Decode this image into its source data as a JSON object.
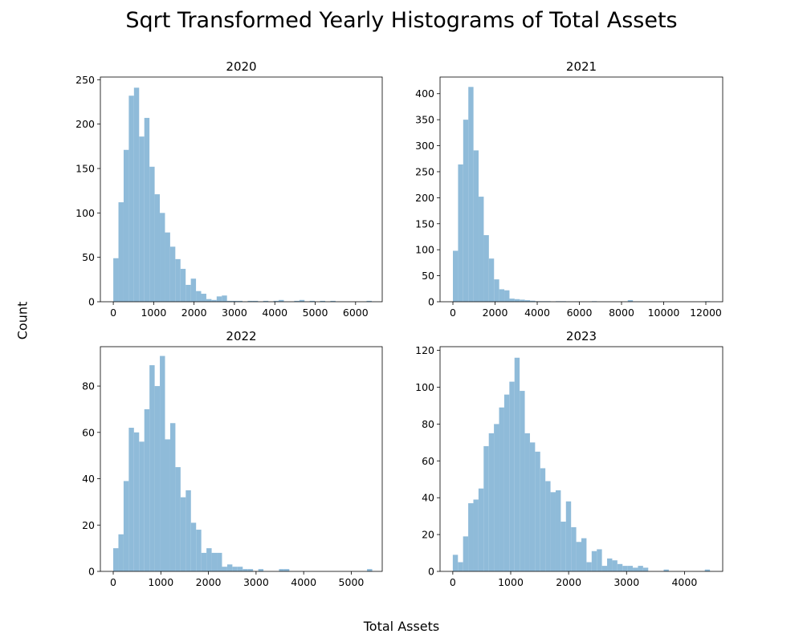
{
  "figure": {
    "title": "Sqrt Transformed Yearly Histograms of Total Assets",
    "xlabel": "Total Assets",
    "ylabel": "Count"
  },
  "style": {
    "bar_color": "#8fbbd9",
    "axis_color": "#000000"
  },
  "chart_data": [
    {
      "type": "bar",
      "title": "2020",
      "xlim": [
        -320,
        6660
      ],
      "ylim": [
        0,
        253
      ],
      "xticks": [
        0,
        1000,
        2000,
        3000,
        4000,
        5000,
        6000
      ],
      "yticks": [
        0,
        50,
        100,
        150,
        200,
        250
      ],
      "bin_start": 0,
      "bin_width": 128,
      "values": [
        49,
        112,
        171,
        232,
        241,
        186,
        207,
        152,
        121,
        100,
        78,
        62,
        48,
        37,
        19,
        26,
        12,
        9,
        3,
        2,
        6,
        7,
        1,
        1,
        1,
        0,
        1,
        1,
        0,
        1,
        0,
        1,
        2,
        0,
        0,
        1,
        2,
        0,
        1,
        0,
        1,
        0,
        1,
        0,
        0,
        0,
        0,
        0,
        0,
        1
      ]
    },
    {
      "type": "bar",
      "title": "2021",
      "xlim": [
        -610,
        12800
      ],
      "ylim": [
        0,
        432
      ],
      "xticks": [
        0,
        2000,
        4000,
        6000,
        8000,
        10000,
        12000
      ],
      "yticks": [
        0,
        50,
        100,
        150,
        200,
        250,
        300,
        350,
        400
      ],
      "bin_start": 0,
      "bin_width": 244,
      "values": [
        98,
        264,
        350,
        413,
        291,
        202,
        128,
        83,
        43,
        24,
        22,
        6,
        5,
        4,
        3,
        2,
        1,
        1,
        1,
        0,
        1,
        1,
        0,
        0,
        0,
        0,
        0,
        1,
        0,
        0,
        0,
        0,
        0,
        0,
        3,
        0,
        0,
        0,
        0,
        0,
        0,
        0,
        0,
        0,
        0,
        0,
        0,
        0,
        0,
        1
      ]
    },
    {
      "type": "bar",
      "title": "2022",
      "xlim": [
        -270,
        5650
      ],
      "ylim": [
        0,
        97
      ],
      "xticks": [
        0,
        1000,
        2000,
        3000,
        4000,
        5000
      ],
      "yticks": [
        0,
        20,
        40,
        60,
        80
      ],
      "bin_start": 0,
      "bin_width": 108.8,
      "values": [
        10,
        16,
        39,
        62,
        60,
        56,
        70,
        89,
        80,
        93,
        57,
        64,
        45,
        32,
        35,
        21,
        18,
        8,
        10,
        8,
        8,
        2,
        3,
        2,
        2,
        1,
        1,
        0,
        1,
        0,
        0,
        0,
        1,
        1,
        0,
        0,
        0,
        0,
        0,
        0,
        0,
        0,
        0,
        0,
        0,
        0,
        0,
        0,
        0,
        1
      ]
    },
    {
      "type": "bar",
      "title": "2023",
      "xlim": [
        -220,
        4660
      ],
      "ylim": [
        0,
        122
      ],
      "xticks": [
        0,
        1000,
        2000,
        3000,
        4000
      ],
      "yticks": [
        0,
        20,
        40,
        60,
        80,
        100,
        120
      ],
      "bin_start": 0,
      "bin_width": 88.8,
      "values": [
        9,
        5,
        19,
        37,
        39,
        45,
        68,
        75,
        80,
        89,
        96,
        103,
        116,
        98,
        75,
        70,
        65,
        56,
        49,
        43,
        44,
        27,
        38,
        24,
        16,
        18,
        5,
        11,
        12,
        3,
        7,
        6,
        4,
        3,
        3,
        2,
        3,
        2,
        0,
        0,
        0,
        1,
        0,
        0,
        0,
        0,
        0,
        0,
        0,
        1
      ]
    }
  ]
}
